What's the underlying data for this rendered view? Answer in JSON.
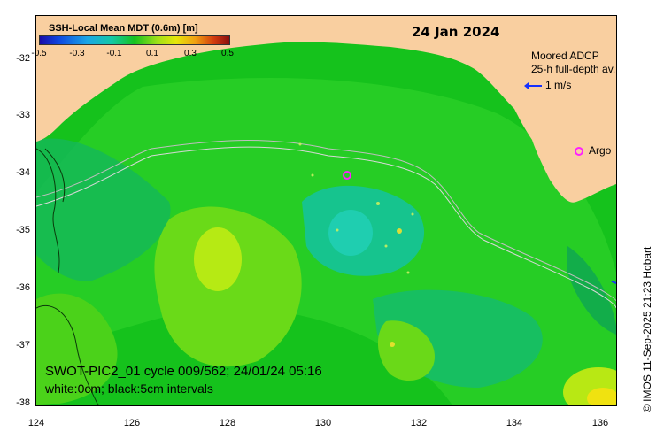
{
  "date_title": "24 Jan 2024",
  "colorbar": {
    "title": "SSH-Local Mean MDT (0.6m) [m]",
    "ticks": [
      "-0.5",
      "-0.3",
      "-0.1",
      "0.1",
      "0.3",
      "0.5"
    ]
  },
  "adcp": {
    "title_line1": "Moored ADCP",
    "title_line2": "25-h full-depth av.",
    "scale_label": "1 m/s"
  },
  "argo_label": "Argo",
  "info": {
    "line1": "SWOT-PIC2_01 cycle 009/562; 24/01/24 05:16",
    "line2": "white:0cm; black:5cm intervals"
  },
  "credit": "© IMOS 11-Sep-2025 21:23 Hobart",
  "axes": {
    "y_ticks": [
      "-32",
      "-33",
      "-34",
      "-35",
      "-36",
      "-37",
      "-38"
    ],
    "x_ticks": [
      "124",
      "126",
      "128",
      "130",
      "132",
      "134",
      "136"
    ]
  },
  "colors": {
    "land": "#f9cfa0",
    "ocean_base": "#15c21c",
    "argo": "#ff20ff",
    "adcp": "#1530ff"
  }
}
